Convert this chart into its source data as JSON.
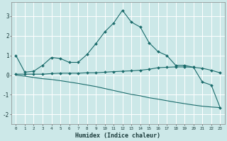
{
  "xlabel": "Humidex (Indice chaleur)",
  "x_ticks": [
    0,
    1,
    2,
    3,
    4,
    5,
    6,
    7,
    8,
    9,
    10,
    11,
    12,
    13,
    14,
    15,
    16,
    17,
    18,
    19,
    20,
    21,
    22,
    23
  ],
  "xlim": [
    -0.5,
    23.5
  ],
  "ylim": [
    -2.5,
    3.7
  ],
  "y_ticks": [
    -2,
    -1,
    0,
    1,
    2,
    3
  ],
  "background_color": "#cce8e8",
  "grid_color": "#ffffff",
  "line_color": "#1a6b6b",
  "line1_x": [
    0,
    1,
    2,
    3,
    4,
    5,
    6,
    7,
    8,
    9,
    10,
    11,
    12,
    13,
    14,
    15,
    16,
    17,
    18,
    19,
    20,
    21,
    22,
    23
  ],
  "line1_y": [
    1.0,
    0.15,
    0.2,
    0.5,
    0.9,
    0.85,
    0.65,
    0.65,
    1.05,
    1.6,
    2.2,
    2.65,
    3.3,
    2.7,
    2.45,
    1.65,
    1.2,
    1.0,
    0.5,
    0.5,
    0.4,
    -0.35,
    -0.5,
    -1.65
  ],
  "line2_x": [
    0,
    1,
    2,
    3,
    4,
    5,
    6,
    7,
    8,
    9,
    10,
    11,
    12,
    13,
    14,
    15,
    16,
    17,
    18,
    19,
    20,
    21,
    22,
    23
  ],
  "line2_y": [
    0.05,
    0.05,
    0.05,
    0.05,
    0.08,
    0.1,
    0.1,
    0.1,
    0.12,
    0.12,
    0.15,
    0.18,
    0.2,
    0.22,
    0.25,
    0.3,
    0.38,
    0.4,
    0.42,
    0.42,
    0.4,
    0.35,
    0.25,
    0.12
  ],
  "line3_x": [
    0,
    1,
    2,
    3,
    4,
    5,
    6,
    7,
    8,
    9,
    10,
    11,
    12,
    13,
    14,
    15,
    16,
    17,
    18,
    19,
    20,
    21,
    22,
    23
  ],
  "line3_y": [
    0.0,
    -0.05,
    -0.12,
    -0.18,
    -0.22,
    -0.28,
    -0.35,
    -0.42,
    -0.5,
    -0.58,
    -0.68,
    -0.78,
    -0.88,
    -0.98,
    -1.05,
    -1.15,
    -1.22,
    -1.3,
    -1.38,
    -1.45,
    -1.52,
    -1.58,
    -1.62,
    -1.65
  ]
}
